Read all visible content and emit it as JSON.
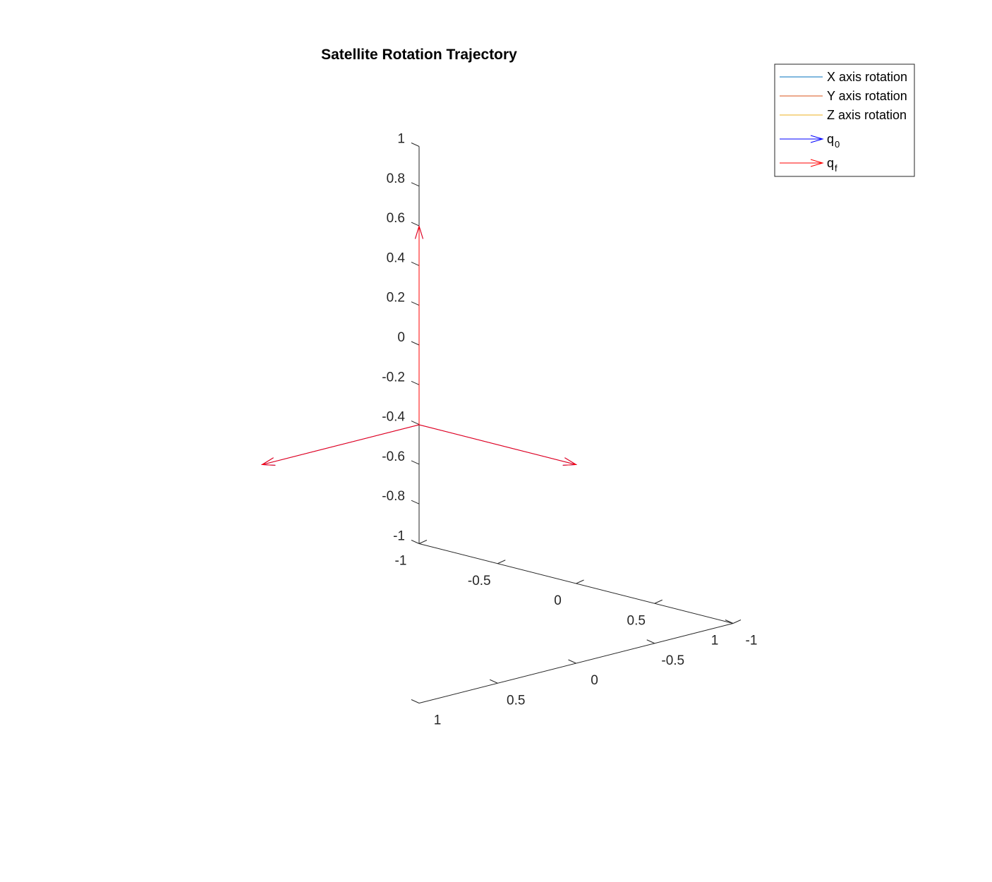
{
  "chart_data": {
    "type": "line",
    "title": "Satellite Rotation Trajectory",
    "projection": "3d-isometric",
    "grid": false,
    "axes": {
      "x": {
        "range": [
          -1,
          1
        ],
        "ticks": [
          -1,
          -0.5,
          0,
          0.5,
          1
        ],
        "tick_labels": [
          "-1",
          "-0.5",
          "0",
          "0.5",
          "1"
        ]
      },
      "y": {
        "range": [
          -1,
          1
        ],
        "ticks": [
          -1,
          -0.5,
          0,
          0.5,
          1
        ],
        "tick_labels": [
          "-1",
          "-0.5",
          "0",
          "0.5",
          "1"
        ]
      },
      "z": {
        "range": [
          -1,
          1
        ],
        "ticks": [
          -1,
          -0.8,
          -0.6,
          -0.4,
          -0.2,
          0,
          0.2,
          0.4,
          0.6,
          0.8,
          1
        ],
        "tick_labels": [
          "-1",
          "-0.8",
          "-0.6",
          "-0.4",
          "-0.2",
          "0",
          "0.2",
          "0.4",
          "0.6",
          "0.8",
          "1"
        ]
      }
    },
    "legend": {
      "placement": "top-right",
      "entries": [
        {
          "label": "X axis rotation",
          "sub": "",
          "color": "#0072bd",
          "marker": "line"
        },
        {
          "label": "Y axis rotation",
          "sub": "",
          "color": "#d95319",
          "marker": "line"
        },
        {
          "label": "Z axis rotation",
          "sub": "",
          "color": "#edb120",
          "marker": "line"
        },
        {
          "label": "q",
          "sub": "0",
          "color": "#0000ff",
          "marker": "arrow"
        },
        {
          "label": "q",
          "sub": "f",
          "color": "#ff0000",
          "marker": "arrow"
        }
      ]
    },
    "series": [
      {
        "name": "q_0",
        "color": "#0000ff",
        "type": "quiver",
        "vectors": [
          {
            "origin": [
              0,
              0,
              0
            ],
            "dir": [
              1,
              0,
              0
            ]
          },
          {
            "origin": [
              0,
              0,
              0
            ],
            "dir": [
              0,
              1,
              0
            ]
          },
          {
            "origin": [
              0,
              0,
              0
            ],
            "dir": [
              0,
              0,
              1
            ]
          }
        ]
      },
      {
        "name": "q_f",
        "color": "#ff0000",
        "type": "quiver",
        "vectors": [
          {
            "origin": [
              0,
              0,
              0
            ],
            "dir": [
              1,
              0,
              0
            ]
          },
          {
            "origin": [
              0,
              0,
              0
            ],
            "dir": [
              0,
              1,
              0
            ]
          },
          {
            "origin": [
              0,
              0,
              0
            ],
            "dir": [
              0,
              0,
              1
            ]
          }
        ]
      }
    ]
  }
}
